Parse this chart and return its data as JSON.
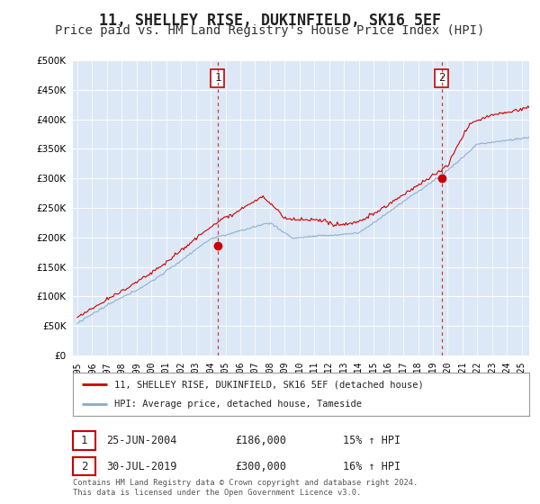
{
  "title": "11, SHELLEY RISE, DUKINFIELD, SK16 5EF",
  "subtitle": "Price paid vs. HM Land Registry's House Price Index (HPI)",
  "title_fontsize": 12,
  "subtitle_fontsize": 10,
  "background_color": "#ffffff",
  "plot_bg_color": "#dce8f5",
  "red_color": "#cc0000",
  "blue_color": "#88aacc",
  "sale1_year": 2004.48,
  "sale1_price": 186000,
  "sale2_year": 2019.58,
  "sale2_price": 300000,
  "legend_line1": "11, SHELLEY RISE, DUKINFIELD, SK16 5EF (detached house)",
  "legend_line2": "HPI: Average price, detached house, Tameside",
  "table_date1": "25-JUN-2004",
  "table_price1": "£186,000",
  "table_hpi1": "15% ↑ HPI",
  "table_date2": "30-JUL-2019",
  "table_price2": "£300,000",
  "table_hpi2": "16% ↑ HPI",
  "footer": "Contains HM Land Registry data © Crown copyright and database right 2024.\nThis data is licensed under the Open Government Licence v3.0.",
  "ylim": [
    0,
    500000
  ],
  "yticks": [
    0,
    50000,
    100000,
    150000,
    200000,
    250000,
    300000,
    350000,
    400000,
    450000,
    500000
  ],
  "xlim_start": 1994.7,
  "xlim_end": 2025.5,
  "xticks": [
    1995,
    1996,
    1997,
    1998,
    1999,
    2000,
    2001,
    2002,
    2003,
    2004,
    2005,
    2006,
    2007,
    2008,
    2009,
    2010,
    2011,
    2012,
    2013,
    2014,
    2015,
    2016,
    2017,
    2018,
    2019,
    2020,
    2021,
    2022,
    2023,
    2024,
    2025
  ]
}
